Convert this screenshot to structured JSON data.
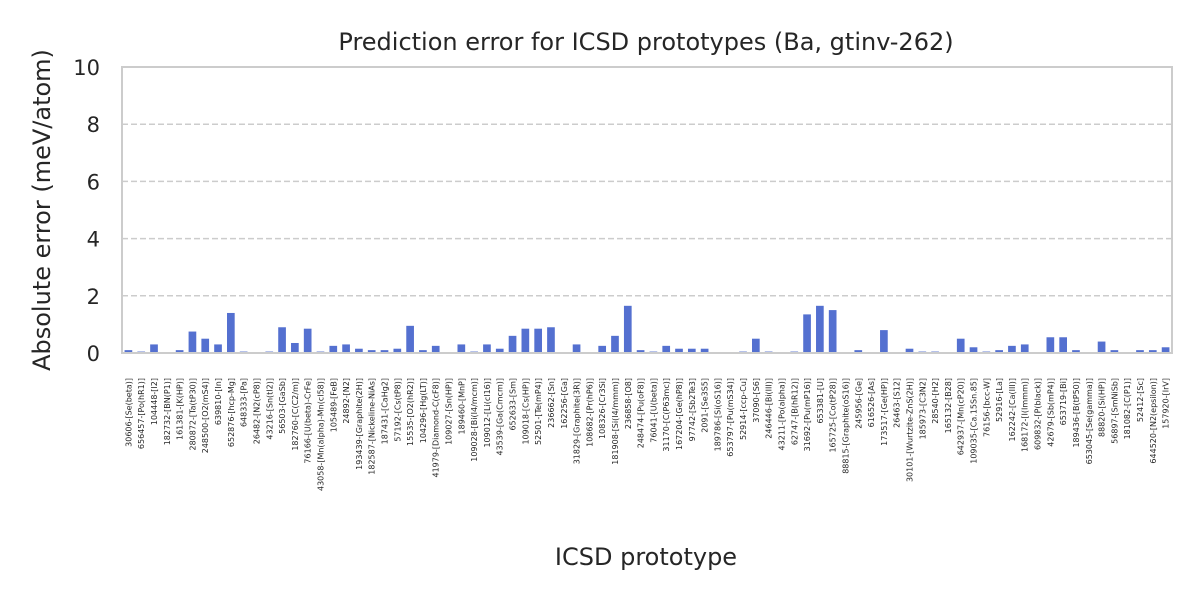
{
  "chart_data": {
    "type": "bar",
    "title": "Prediction error for ICSD prototypes (Ba, gtinv-262)",
    "x_label": "ICSD prototype",
    "y_label": "Absolute error (meV/atom)",
    "color": "#5470d0",
    "grid": true,
    "ylim": [
      0,
      10
    ],
    "yticks": [
      0,
      2,
      4,
      6,
      8,
      10
    ],
    "categories": [
      "30606-[Se(beta)]",
      "656457-[Po(hR1)]",
      "104448-[I2]",
      "182732-[BN(P1)]",
      "161381-[K(HP)]",
      "280872-[Ta(tP30)]",
      "248500-[O2(mS4)]",
      "639810-[In]",
      "652876-[hcp-Mg]",
      "648333-[Pa]",
      "26482-[N2(cP8)]",
      "43216-[Sn(tI2)]",
      "56503-[GaSb]",
      "182760-[C(C2/m)]",
      "76166-[U(beta)-CrFe]",
      "43058-[Mn(alpha)-Mn(cI58)]",
      "105489-[FeB]",
      "24892-[N2]",
      "193439-[Graphite(2H)]",
      "182587-[Nickeline-NiAs]",
      "187431-[CaHg2]",
      "57192-[Cs(tP8)]",
      "15535-[O2(hR2)]",
      "104296-[Hg(LT)]",
      "41979-[Diamond-C(cF8)]",
      "109027-[Sn(HP)]",
      "189460-[MnP]",
      "109028-[Bi(I4/mcm)]",
      "109012-[Li(cI16)]",
      "43539-[Ga(Cmcm)]",
      "652633-[Sm]",
      "109018-[Cs(HP)]",
      "52501-[Te(mP4)]",
      "236662-[Sn]",
      "162256-[Ga]",
      "31829-[Graphite(3R)]",
      "108682-[Pr(hP6)]",
      "108326-[Cr3Si]",
      "181908-[Si(I4/mmm)]",
      "236858-[O8]",
      "248474-[Pu(oF8)]",
      "76041-[U(beta)]",
      "31170-[C(P63mc)]",
      "167204-[Ge(hP8)]",
      "97742-[Sb2Te3]",
      "2091-[Se3S5]",
      "189786-[Si(oS16)]",
      "653797-[Pu(mS34)]",
      "52914-[ccp-Cu]",
      "37090-[S6]",
      "246446-[Bi(III)]",
      "43211-[Po(alpha)]",
      "62747-[B(hR12)]",
      "31692-[Pu(mP16)]",
      "653381-[U]",
      "165725-[Co(tP28)]",
      "88815-[Graphite(oS16)]",
      "245956-[Ge]",
      "616526-[As]",
      "173517-[Ge(HP)]",
      "26463-[S12]",
      "30101-[Wurtzite-ZnS(2H)]",
      "185973-[C3N2]",
      "28540-[H2]",
      "165132-[B28]",
      "642937-[Mn(cP20)]",
      "109035-[Ca.15Sn.85]",
      "76156-[bcc-W]",
      "52916-[La]",
      "162242-[Ca(III)]",
      "168172-[I(Immm)]",
      "609832-[P(black)]",
      "42679-[Sb(mP4)]",
      "653719-[Bi]",
      "189436-[B(tP50)]",
      "653045-[Se(gamma)]",
      "88820-[Si(HP)]",
      "56897-[SmNiSb]",
      "181082-[C(P1)]",
      "52412-[Sc]",
      "644520-[N2(epsilon)]",
      "157920-[IrV]"
    ],
    "values": [
      0.1,
      0.05,
      0.3,
      0.02,
      0.1,
      0.75,
      0.5,
      0.3,
      1.4,
      0.05,
      0.02,
      0.05,
      0.9,
      0.35,
      0.85,
      0.05,
      0.25,
      0.3,
      0.15,
      0.1,
      0.1,
      0.15,
      0.95,
      0.1,
      0.25,
      0.02,
      0.3,
      0.05,
      0.3,
      0.15,
      0.6,
      0.85,
      0.85,
      0.9,
      0.02,
      0.3,
      0.02,
      0.25,
      0.6,
      1.65,
      0.1,
      0.05,
      0.25,
      0.15,
      0.15,
      0.15,
      0.02,
      0.02,
      0.05,
      0.5,
      0.05,
      0.02,
      0.05,
      1.35,
      1.65,
      1.5,
      0.02,
      0.1,
      0.02,
      0.8,
      0.02,
      0.15,
      0.05,
      0.05,
      0.02,
      0.5,
      0.2,
      0.05,
      0.1,
      0.25,
      0.3,
      0.02,
      0.55,
      0.55,
      0.1,
      0.02,
      0.4,
      0.1,
      0.02,
      0.1,
      0.1,
      0.2
    ]
  }
}
